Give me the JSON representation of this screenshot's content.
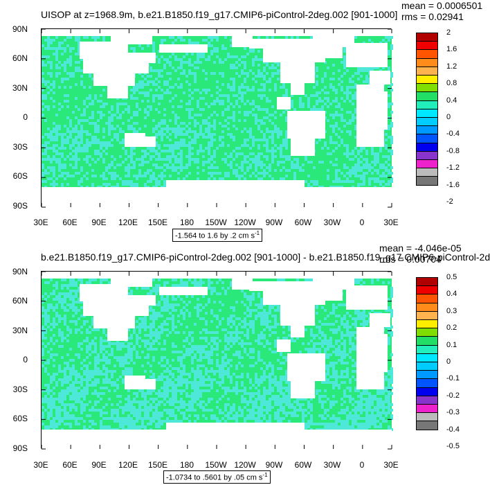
{
  "panels": [
    {
      "title": "UISOP at z=1968.9m, b.e21.B1850.f19_g17.CMIP6-piControl-2deg.002 [901-1000]",
      "mean_text": "mean = 0.0006501",
      "rms_text": "rms = 0.02941",
      "range_text": "-1.564 to 1.6 by .2 cm s",
      "range_exp": "-1",
      "legend_labels": [
        "2",
        "1.6",
        "1.2",
        "0.8",
        "0.4",
        "0",
        "-0.4",
        "-0.8",
        "-1.2",
        "-1.6",
        "-2"
      ]
    },
    {
      "title": "b.e21.B1850.f19_g17.CMIP6-piControl-2deg.002 [901-1000] - b.e21.B1850.f19_g17.CMIP6-piControl-2d",
      "mean_text": "mean = -4.046e-05",
      "rms_text": "rms = 0.00704",
      "range_text": "-1.0734 to .5601 by .05 cm s",
      "range_exp": "-1",
      "legend_labels": [
        "0.5",
        "0.4",
        "0.3",
        "0.2",
        "0.1",
        "0",
        "-0.1",
        "-0.2",
        "-0.3",
        "-0.4",
        "-0.5"
      ]
    }
  ],
  "y_tick_labels": [
    "90N",
    "60N",
    "30N",
    "0",
    "30S",
    "60S",
    "90S"
  ],
  "x_tick_labels": [
    "30E",
    "60E",
    "90E",
    "120E",
    "150E",
    "180",
    "150W",
    "120W",
    "90W",
    "60W",
    "30W",
    "0",
    "30E"
  ],
  "legend_colors": [
    "#b00000",
    "#ee0000",
    "#ff5500",
    "#ff8c1a",
    "#ffb24d",
    "#ffee00",
    "#7fdd00",
    "#22dd66",
    "#22eebb",
    "#00e8ff",
    "#00ccff",
    "#0099ff",
    "#0055ff",
    "#0000ee",
    "#8833cc",
    "#ee22cc",
    "#bbbbbb",
    "#777777"
  ],
  "field_colors": {
    "green": "#2ae87a",
    "cyan": "#4de8d8",
    "land": "#ffffff"
  }
}
